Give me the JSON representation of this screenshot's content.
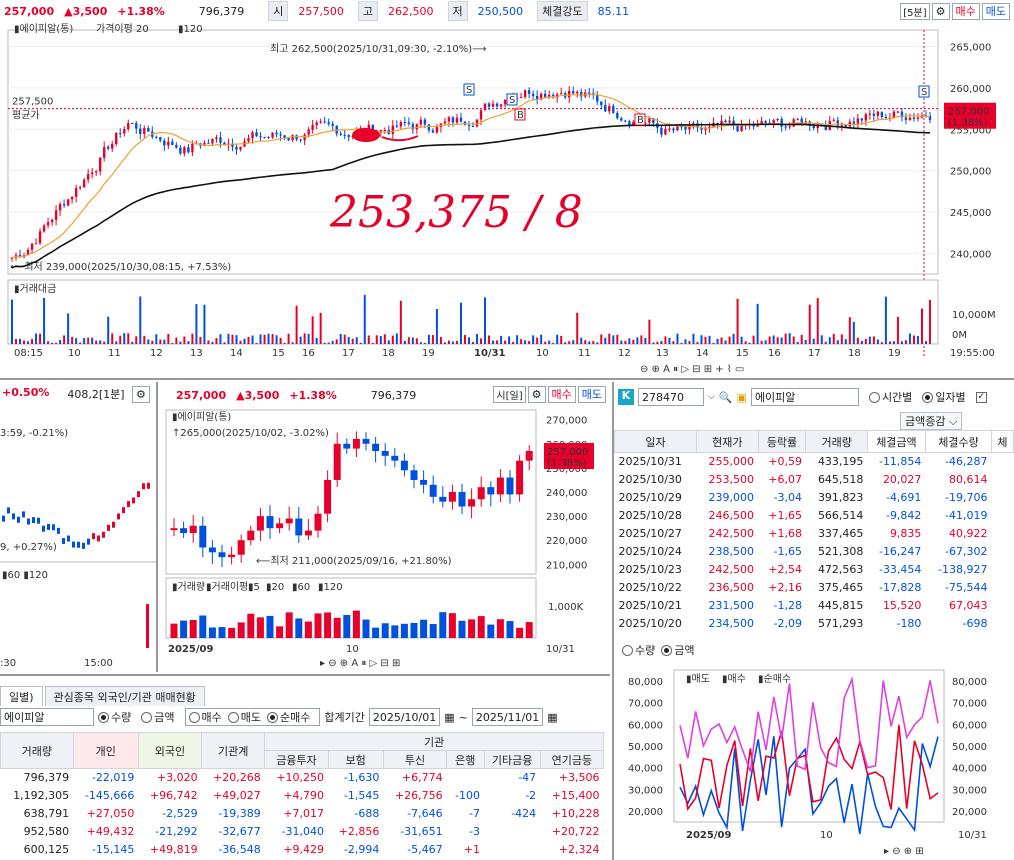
{
  "main": {
    "price": "257,000",
    "change": "▲3,500",
    "pct": "+1.38%",
    "volume": "796,379",
    "open_lbl": "시",
    "open": "257,500",
    "high_lbl": "고",
    "high": "262,500",
    "low_lbl": "저",
    "low": "250,500",
    "strength_lbl": "체결강도",
    "strength": "85.11",
    "interval": "[5분]",
    "sell": "매수",
    "buy": "매도",
    "legend_name": "에이피알(통)",
    "legend_ma": "가격이평 20",
    "legend_120": "120",
    "high_note": "최고 262,500(2025/10/31,09:30, -2.10%)⟶",
    "low_note": "⟵최저 239,000(2025/10/30,08:15, +7.53%)",
    "avg_price": "257,500",
    "avg_lbl": "평균가",
    "cur_tag1": "257,000",
    "cur_tag2": "(1.38%)",
    "handwriting": "253,375 / 8",
    "y_ticks": [
      "265,000",
      "260,000",
      "255,000",
      "250,000",
      "245,000",
      "240,000"
    ],
    "vol_lbl": "거래대금",
    "vol_ticks": [
      "10,000M",
      "0M"
    ],
    "x_ticks": [
      "08:15",
      "10",
      "11",
      "12",
      "13",
      "14",
      "15",
      "16",
      "17",
      "18",
      "19",
      "10/31",
      "10",
      "11",
      "12",
      "13",
      "14",
      "15",
      "16",
      "17",
      "18",
      "19"
    ],
    "time": "19:55:00"
  },
  "left_mini": {
    "pct": "+0.50%",
    "val": "408,2[1분]",
    "note1": "3:59, -0.21%)",
    "note2": "9, +0.27%)",
    "ma": [
      "60",
      "120"
    ],
    "x1": ":30",
    "x2": "15:00"
  },
  "daily": {
    "price": "257,000",
    "change": "▲3,500",
    "pct": "+1.38%",
    "volume": "796,379",
    "interval": "시[일]",
    "sell": "매수",
    "buy": "매도",
    "legend": "에이피알(통)",
    "high_note": "265,000(2025/10/02, -3.02%)",
    "low_note": "⟵최저 211,000(2025/09/16, +21.80%)",
    "cur1": "257,000",
    "cur2": "(1.38%)",
    "y_ticks": [
      "270,000",
      "260,000",
      "250,000",
      "240,000",
      "230,000",
      "220,000",
      "210,000"
    ],
    "vol_legend": [
      "거래량",
      "거래이평",
      "5",
      "20",
      "60",
      "120"
    ],
    "vol_tick": "1,000K",
    "x_ticks": [
      "2025/09",
      "10",
      "10/31"
    ]
  },
  "trade": {
    "code": "278470",
    "name": "에이피알",
    "radio1": "시간별",
    "radio2": "일자별",
    "sort": "금액증감",
    "headers": [
      "일자",
      "현재가",
      "등락률",
      "거래량",
      "체결금액",
      "체결수량",
      "체"
    ],
    "rows": [
      [
        "2025/10/31",
        "255,000",
        "+0,59",
        "433,195",
        "-11,854",
        "-46,287"
      ],
      [
        "2025/10/30",
        "253,500",
        "+6,07",
        "645,518",
        "20,027",
        "80,614"
      ],
      [
        "2025/10/29",
        "239,000",
        "-3,04",
        "391,823",
        "-4,691",
        "-19,706"
      ],
      [
        "2025/10/28",
        "246,500",
        "+1,65",
        "566,514",
        "-9,842",
        "-41,019"
      ],
      [
        "2025/10/27",
        "242,500",
        "+1,68",
        "337,465",
        "9,835",
        "40,922"
      ],
      [
        "2025/10/24",
        "238,500",
        "-1,65",
        "521,308",
        "-16,247",
        "-67,302"
      ],
      [
        "2025/10/23",
        "242,500",
        "+2,54",
        "472,563",
        "-33,454",
        "-138,927"
      ],
      [
        "2025/10/22",
        "236,500",
        "+2,16",
        "375,465",
        "-17,828",
        "-75,544"
      ],
      [
        "2025/10/21",
        "231,500",
        "-1,28",
        "445,815",
        "15,520",
        "67,043"
      ],
      [
        "2025/10/20",
        "234,500",
        "-2,09",
        "571,293",
        "-180",
        "-698"
      ]
    ],
    "r_qty": "수량",
    "r_amt": "금액",
    "legend": [
      "매도",
      "매수",
      "순매수"
    ],
    "y_ticks": [
      "80,000",
      "70,000",
      "60,000",
      "50,000",
      "40,000",
      "30,000",
      "20,000"
    ],
    "x_ticks": [
      "2025/09",
      "10",
      "10/31"
    ]
  },
  "invest": {
    "tab1": "일별)",
    "tab2": "관심종목 외국인/기관 매매현황",
    "name": "에이피알",
    "r": [
      "수량",
      "금액",
      "매수",
      "매도",
      "순매수"
    ],
    "period_lbl": "합계기간",
    "from": "2025/10/01",
    "to": "2025/11/01",
    "inst": "기관",
    "headers": [
      "거래량",
      "개인",
      "외국인",
      "기관계",
      "금융투자",
      "보험",
      "투신",
      "은행",
      "기타금융",
      "연기금등"
    ],
    "rows": [
      [
        "796,379",
        "-22,019",
        "+3,020",
        "+20,268",
        "+10,250",
        "-1,630",
        "+6,774",
        "",
        "-47",
        "+3,506"
      ],
      [
        "1,192,305",
        "-145,666",
        "+96,742",
        "+49,027",
        "+4,790",
        "-1,545",
        "+26,756",
        "-100",
        "-2",
        "+15,400"
      ],
      [
        "638,791",
        "+27,050",
        "-2,529",
        "-19,389",
        "+7,017",
        "-688",
        "-7,646",
        "-7",
        "-424",
        "+10,228"
      ],
      [
        "952,580",
        "+49,432",
        "-21,292",
        "-32,677",
        "-31,040",
        "+2,856",
        "-31,651",
        "-3",
        "",
        "+20,722"
      ],
      [
        "600,125",
        "-15,145",
        "+49,819",
        "-36,548",
        "+9,429",
        "-2,994",
        "-5,467",
        "+1",
        "",
        "+2,324"
      ]
    ]
  },
  "colors": {
    "up": "#e8002a",
    "down": "#0050e0",
    "ma20": "#f0a030",
    "ma120": "#111111",
    "pink": "#e040e0"
  }
}
